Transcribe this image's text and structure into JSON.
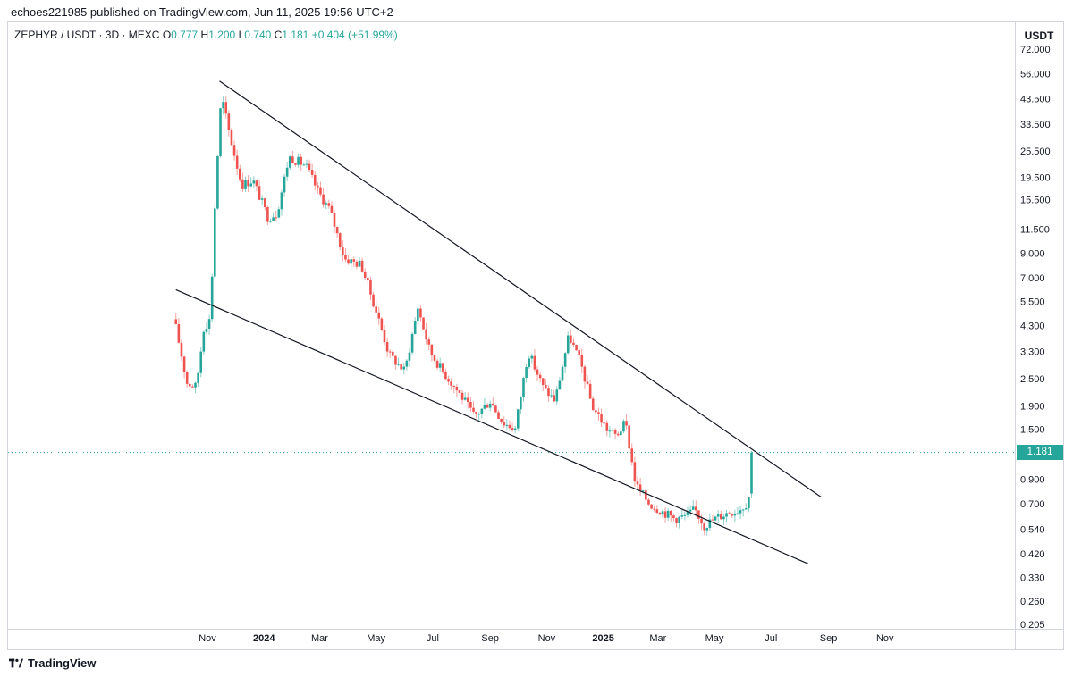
{
  "header": {
    "publisher": "echoes221985 published on TradingView.com, Jun 11, 2025 19:56 UTC+2"
  },
  "legend": {
    "symbol": "ZEPHYR / USDT · 3D · MEXC",
    "o_label": "O",
    "o_value": "0.777",
    "h_label": "H",
    "h_value": "1.200",
    "l_label": "L",
    "l_value": "0.740",
    "c_label": "C",
    "c_value": "1.181",
    "change": "+0.404 (+51.99%)"
  },
  "axis": {
    "unit": "USDT",
    "last_price_label": "1.181"
  },
  "footer": {
    "brand": "TradingView"
  },
  "colors": {
    "up": "#26a69a",
    "down": "#ef5350",
    "line": "#131722",
    "last": "#26a69a"
  },
  "chart_data": {
    "type": "candlestick",
    "y_scale": "log",
    "y_ticks": [
      "72.000",
      "56.000",
      "43.500",
      "33.500",
      "25.500",
      "19.500",
      "15.500",
      "11.500",
      "9.000",
      "7.000",
      "5.500",
      "4.300",
      "3.300",
      "2.500",
      "1.900",
      "1.500",
      "0.900",
      "0.700",
      "0.540",
      "0.420",
      "0.330",
      "0.260",
      "0.205"
    ],
    "x_ticks": [
      {
        "label": "Nov",
        "year": false
      },
      {
        "label": "2024",
        "year": true
      },
      {
        "label": "Mar",
        "year": false
      },
      {
        "label": "May",
        "year": false
      },
      {
        "label": "Jul",
        "year": false
      },
      {
        "label": "Sep",
        "year": false
      },
      {
        "label": "Nov",
        "year": false
      },
      {
        "label": "2025",
        "year": true
      },
      {
        "label": "Mar",
        "year": false
      },
      {
        "label": "May",
        "year": false
      },
      {
        "label": "Jul",
        "year": false
      },
      {
        "label": "Sep",
        "year": false
      },
      {
        "label": "Nov",
        "year": false
      }
    ],
    "last_price": 1.181,
    "anchors": [
      [
        "2023-09-28",
        4.2
      ],
      [
        "2023-10-10",
        2.4
      ],
      [
        "2023-10-20",
        2.3
      ],
      [
        "2023-10-28",
        4.2
      ],
      [
        "2023-11-04",
        4.6
      ],
      [
        "2023-11-10",
        18
      ],
      [
        "2023-11-16",
        45
      ],
      [
        "2023-11-25",
        30
      ],
      [
        "2023-12-08",
        18
      ],
      [
        "2023-12-20",
        19
      ],
      [
        "2024-01-05",
        13
      ],
      [
        "2024-01-15",
        13.5
      ],
      [
        "2024-01-28",
        24
      ],
      [
        "2024-02-15",
        22
      ],
      [
        "2024-02-28",
        17
      ],
      [
        "2024-03-12",
        14
      ],
      [
        "2024-03-28",
        8.5
      ],
      [
        "2024-04-15",
        8
      ],
      [
        "2024-05-01",
        5
      ],
      [
        "2024-05-15",
        3.2
      ],
      [
        "2024-06-01",
        2.7
      ],
      [
        "2024-06-15",
        5.2
      ],
      [
        "2024-06-28",
        3.3
      ],
      [
        "2024-07-12",
        2.7
      ],
      [
        "2024-08-01",
        2.1
      ],
      [
        "2024-08-15",
        1.7
      ],
      [
        "2024-09-01",
        2.0
      ],
      [
        "2024-09-15",
        1.6
      ],
      [
        "2024-09-28",
        1.5
      ],
      [
        "2024-10-12",
        3.3
      ],
      [
        "2024-10-28",
        2.3
      ],
      [
        "2024-11-10",
        2.0
      ],
      [
        "2024-11-25",
        3.9
      ],
      [
        "2024-12-08",
        2.9
      ],
      [
        "2024-12-20",
        1.9
      ],
      [
        "2025-01-05",
        1.5
      ],
      [
        "2025-01-15",
        1.4
      ],
      [
        "2025-01-25",
        1.6
      ],
      [
        "2025-02-05",
        0.85
      ],
      [
        "2025-02-20",
        0.7
      ],
      [
        "2025-03-05",
        0.65
      ],
      [
        "2025-03-20",
        0.6
      ],
      [
        "2025-04-01",
        0.62
      ],
      [
        "2025-04-10",
        0.66
      ],
      [
        "2025-04-20",
        0.56
      ],
      [
        "2025-05-01",
        0.6
      ],
      [
        "2025-05-15",
        0.64
      ],
      [
        "2025-05-28",
        0.66
      ],
      [
        "2025-06-04",
        0.7
      ],
      [
        "2025-06-08",
        0.777
      ],
      [
        "2025-06-10",
        1.181
      ]
    ],
    "trendlines": [
      {
        "name": "upper",
        "from": [
          "2023-11-14",
          52
        ],
        "to": [
          "2025-08-24",
          0.75
        ]
      },
      {
        "name": "lower",
        "from": [
          "2023-09-28",
          6.2
        ],
        "to": [
          "2025-08-10",
          0.38
        ]
      }
    ]
  }
}
